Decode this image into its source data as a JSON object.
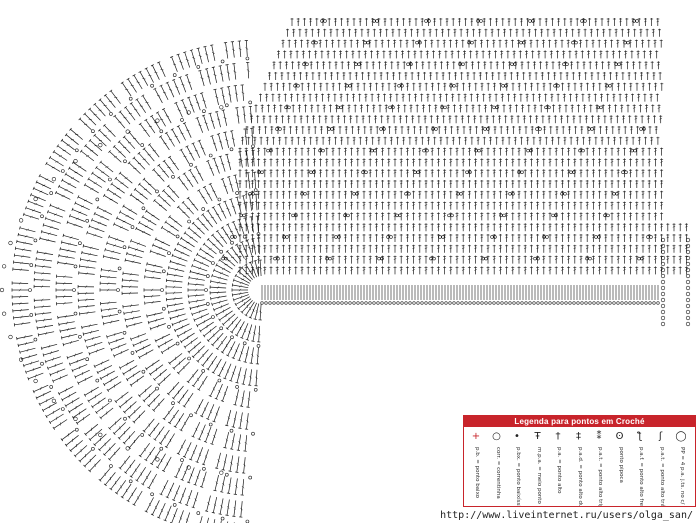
{
  "legend": {
    "title": "Legenda para pontos em Croché",
    "items": [
      {
        "symbol": "+",
        "text": "p.b. = ponto baixo",
        "accent": true
      },
      {
        "symbol": "○",
        "text": "corr. = correntinha",
        "accent": false
      },
      {
        "symbol": "•",
        "text": "p.bx. = ponto baixíssimo",
        "accent": false
      },
      {
        "symbol": "Ŧ",
        "text": "m.p.a. = meio ponto alto",
        "accent": false
      },
      {
        "symbol": "†",
        "text": "p.a. = ponto alto",
        "accent": false
      },
      {
        "symbol": "‡",
        "text": "p.a.d. = ponto alto duplo",
        "accent": false
      },
      {
        "symbol": "⁑",
        "text": "p.a.t. = ponto alto triplo",
        "accent": false
      },
      {
        "symbol": "ʘ",
        "text": "ponto pipoca",
        "accent": false
      },
      {
        "symbol": "ƪ",
        "text": "p.a.f. = ponto alto frente",
        "accent": false
      },
      {
        "symbol": "ʃ",
        "text": "p.a.t. = ponto alto trás",
        "accent": false
      },
      {
        "symbol": "◯",
        "text": "PP = 4 p.a. j.ts. no c/ p.a. j.ts.",
        "accent": false
      }
    ]
  },
  "watermark": "http://www.liveinternet.ru/users/olga_san/",
  "colors": {
    "accent": "#c8242b",
    "ink": "#1a1a1a"
  }
}
